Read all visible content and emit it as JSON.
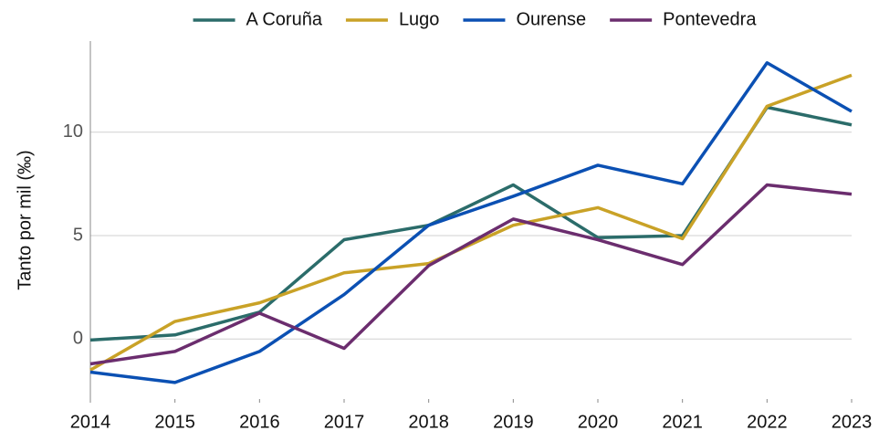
{
  "chart_data": {
    "type": "line",
    "ylabel": "Tanto por mil (‰)",
    "x": [
      2014,
      2015,
      2016,
      2017,
      2018,
      2019,
      2020,
      2021,
      2022,
      2023
    ],
    "xlim": [
      2014,
      2023
    ],
    "xticks": [
      2014,
      2015,
      2016,
      2017,
      2018,
      2019,
      2020,
      2021,
      2022,
      2023
    ],
    "ylim": [
      -2.9,
      14.4
    ],
    "yticks": [
      0,
      5,
      10
    ],
    "grid": true,
    "legend": "top",
    "series": [
      {
        "name": "A Coruña",
        "color": "#2b6c6a",
        "values": [
          -0.05,
          0.2,
          1.3,
          4.8,
          5.5,
          7.45,
          4.9,
          5.0,
          11.2,
          10.35
        ]
      },
      {
        "name": "Lugo",
        "color": "#c9a227",
        "values": [
          -1.5,
          0.85,
          1.75,
          3.2,
          3.65,
          5.5,
          6.35,
          4.85,
          11.25,
          12.75
        ]
      },
      {
        "name": "Ourense",
        "color": "#0b50b3",
        "values": [
          -1.6,
          -2.1,
          -0.6,
          2.15,
          5.5,
          6.9,
          8.4,
          7.5,
          13.35,
          11.0
        ]
      },
      {
        "name": "Pontevedra",
        "color": "#6b2d6e",
        "values": [
          -1.2,
          -0.6,
          1.25,
          -0.45,
          3.55,
          5.8,
          4.8,
          3.6,
          7.45,
          7.0
        ]
      }
    ]
  }
}
